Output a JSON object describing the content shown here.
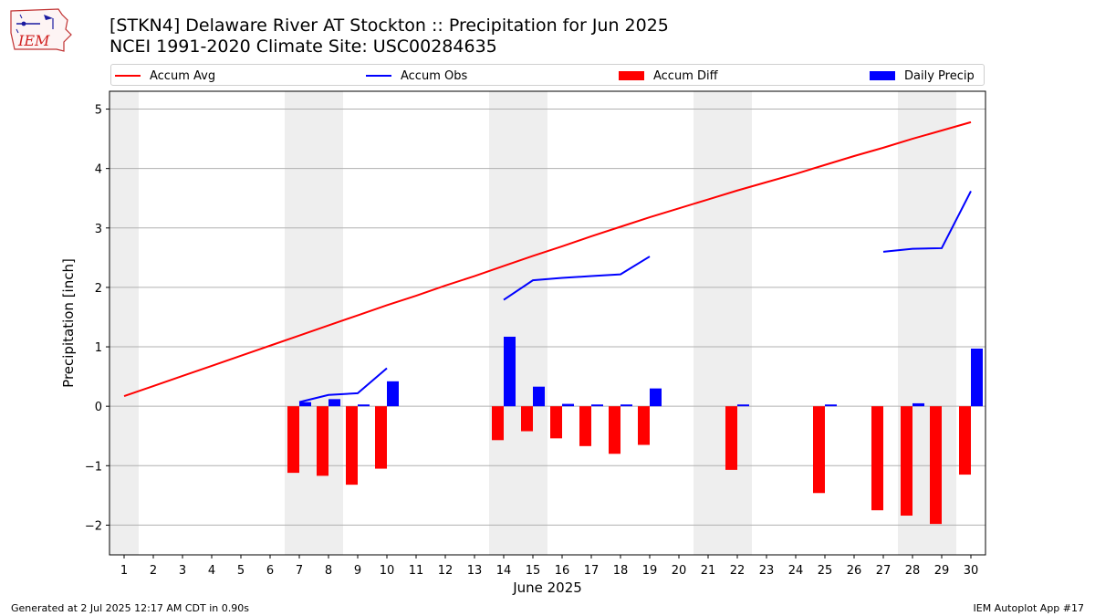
{
  "header": {
    "title_line1": "[STKN4] Delaware River  AT Stockton :: Precipitation for Jun 2025",
    "title_line2": "NCEI 1991-2020 Climate Site: USC00284635"
  },
  "logo": {
    "text": "IEM"
  },
  "footer": {
    "left": "Generated at 2 Jul 2025 12:17 AM CDT in 0.90s",
    "right": "IEM Autoplot App #17"
  },
  "colors": {
    "accum_avg": "#ff0000",
    "accum_obs": "#0000ff",
    "accum_diff": "#ff0000",
    "daily_precip": "#0000ff",
    "weekend_shade": "#eeeeee",
    "grid": "#b0b0b0"
  },
  "chart_data": {
    "type": "bar",
    "xlabel": "June 2025",
    "ylabel": "Precipitation [inch]",
    "xlim": [
      0.5,
      30.5
    ],
    "ylim": [
      -2.5,
      5.3
    ],
    "yticks": [
      -2,
      -1,
      0,
      1,
      2,
      3,
      4,
      5
    ],
    "ytick_labels": [
      "−2",
      "−1",
      "0",
      "1",
      "2",
      "3",
      "4",
      "5"
    ],
    "grid": "horizontal",
    "legend_position": "top, above plot",
    "days": [
      1,
      2,
      3,
      4,
      5,
      6,
      7,
      8,
      9,
      10,
      11,
      12,
      13,
      14,
      15,
      16,
      17,
      18,
      19,
      20,
      21,
      22,
      23,
      24,
      25,
      26,
      27,
      28,
      29,
      30
    ],
    "weekend_shading": [
      [
        0.5,
        1.5
      ],
      [
        6.5,
        8.5
      ],
      [
        13.5,
        15.5
      ],
      [
        20.5,
        22.5
      ],
      [
        27.5,
        29.5
      ]
    ],
    "series": [
      {
        "name": "Accum Avg",
        "kind": "line",
        "values": [
          0.17,
          0.34,
          0.51,
          0.68,
          0.85,
          1.02,
          1.19,
          1.36,
          1.53,
          1.7,
          1.86,
          2.03,
          2.19,
          2.36,
          2.53,
          2.69,
          2.86,
          3.02,
          3.18,
          3.33,
          3.48,
          3.63,
          3.77,
          3.91,
          4.06,
          4.21,
          4.35,
          4.5,
          4.64,
          4.78
        ]
      },
      {
        "name": "Accum Obs",
        "kind": "line",
        "values": [
          null,
          null,
          null,
          null,
          null,
          null,
          0.07,
          0.19,
          0.22,
          0.64,
          null,
          null,
          null,
          1.79,
          2.12,
          2.16,
          2.19,
          2.22,
          2.52,
          null,
          null,
          null,
          null,
          null,
          null,
          null,
          2.6,
          2.65,
          2.66,
          3.62
        ]
      },
      {
        "name": "Accum Diff",
        "kind": "bar",
        "values": [
          null,
          null,
          null,
          null,
          null,
          null,
          -1.12,
          -1.17,
          -1.32,
          -1.05,
          null,
          null,
          null,
          -0.57,
          -0.42,
          -0.54,
          -0.67,
          -0.8,
          -0.65,
          null,
          null,
          -1.07,
          null,
          null,
          -1.46,
          null,
          -1.75,
          -1.84,
          -1.98,
          -1.15
        ]
      },
      {
        "name": "Daily Precip",
        "kind": "bar",
        "values": [
          null,
          null,
          null,
          null,
          null,
          null,
          0.07,
          0.12,
          0.03,
          0.42,
          null,
          null,
          null,
          1.17,
          0.33,
          0.04,
          0.03,
          0.03,
          0.3,
          null,
          null,
          0.03,
          null,
          null,
          0.03,
          null,
          null,
          0.05,
          null,
          0.97
        ]
      }
    ]
  }
}
